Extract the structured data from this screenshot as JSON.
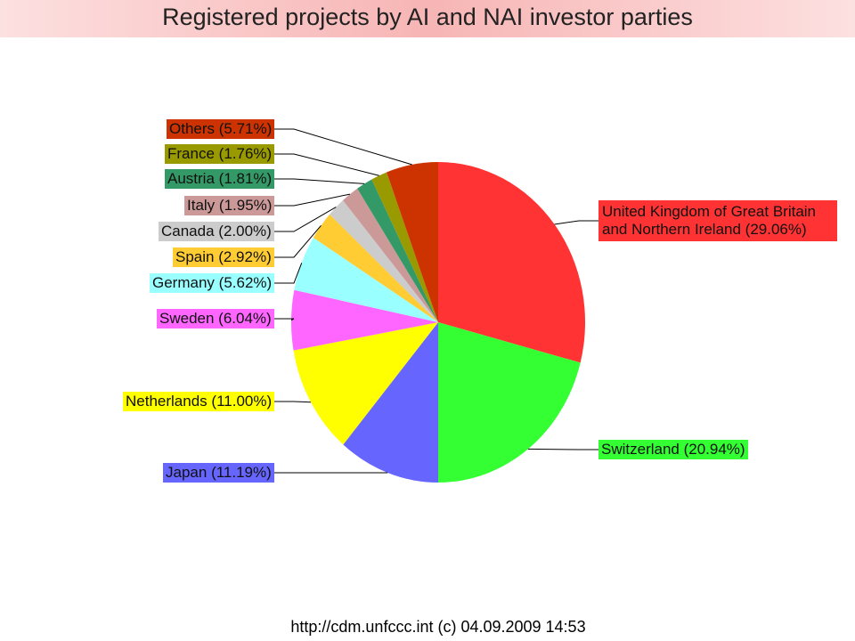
{
  "chart_data": {
    "type": "pie",
    "title": "Registered projects by AI and NAI investor parties",
    "footer": "http://cdm.unfccc.int (c) 04.09.2009 14:53",
    "categories": [
      "United Kingdom of Great Britain and Northern Ireland",
      "Switzerland",
      "Japan",
      "Netherlands",
      "Sweden",
      "Germany",
      "Spain",
      "Canada",
      "Italy",
      "Austria",
      "France",
      "Others"
    ],
    "values": [
      29.06,
      20.94,
      11.19,
      11.0,
      6.04,
      5.62,
      2.92,
      2.0,
      1.95,
      1.81,
      1.76,
      5.71
    ],
    "value_labels": [
      "(29.06%)",
      "(20.94%)",
      "(11.19%)",
      "(11.00%)",
      "(6.04%)",
      "(5.62%)",
      "(2.92%)",
      "(2.00%)",
      "(1.95%)",
      "(1.81%)",
      "(1.76%)",
      "(5.71%)"
    ],
    "colors": [
      "#ff3333",
      "#33ff33",
      "#6666ff",
      "#ffff00",
      "#ff66ff",
      "#99ffff",
      "#ffcc33",
      "#cccccc",
      "#cc9999",
      "#339966",
      "#999900",
      "#cc3300"
    ]
  }
}
